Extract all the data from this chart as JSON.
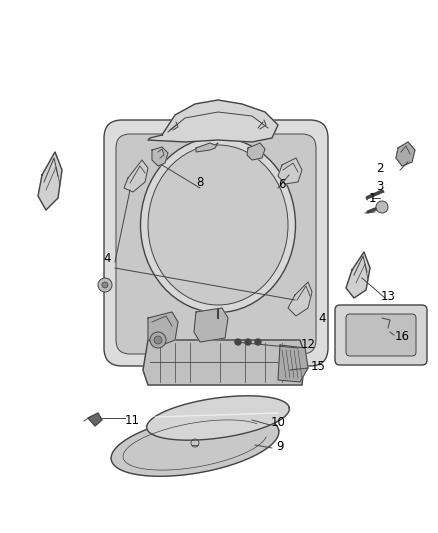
{
  "bg_color": "#ffffff",
  "line_color": "#444444",
  "label_color": "#000000",
  "label_fontsize": 8.5,
  "fig_width": 4.38,
  "fig_height": 5.33,
  "dpi": 100
}
